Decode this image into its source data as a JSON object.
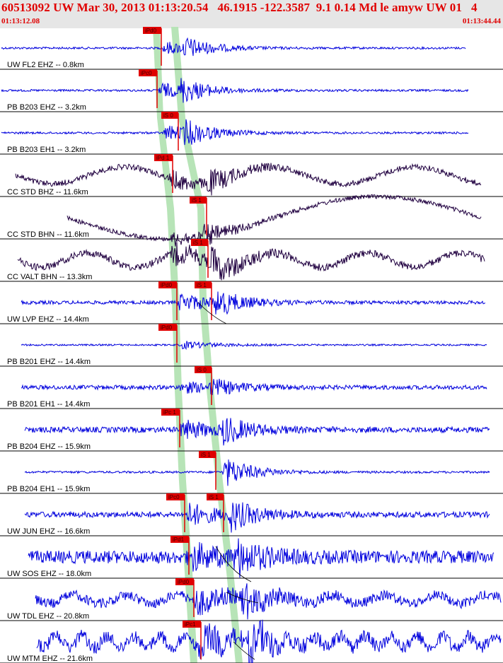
{
  "header": {
    "title": "60513092 UW Mar 30, 2013 01:13:20.54   46.1915 -122.3587  9.1 0.14 Md le amyw UW 01   4",
    "start_time": "01:13:12.08",
    "end_time": "01:13:44.44"
  },
  "colors": {
    "high_gain": "#0000dd",
    "broadband": "#200040",
    "pick": "#e00000",
    "window": "#b7e4b7"
  },
  "traces": [
    {
      "label": "UW FL2 EHZ -- 0.8km",
      "p_pick": "iPd0",
      "s_pick": null,
      "type": "high_gain"
    },
    {
      "label": "PB B203 EHZ -- 3.2km",
      "p_pick": "iPc0",
      "s_pick": null,
      "type": "high_gain"
    },
    {
      "label": "PB B203 EH1 -- 3.2km",
      "p_pick": null,
      "s_pick": "iS 0",
      "type": "high_gain"
    },
    {
      "label": "CC STD BHZ -- 11.6km",
      "p_pick": "iPd 1",
      "s_pick": null,
      "type": "broadband"
    },
    {
      "label": "CC STD BHN -- 11.6km",
      "p_pick": null,
      "s_pick": "iS 1",
      "type": "broadband"
    },
    {
      "label": "CC VALT BHN -- 13.3km",
      "p_pick": null,
      "s_pick": "iS 1",
      "type": "broadband"
    },
    {
      "label": "UW LVP EHZ -- 14.4km",
      "p_pick": "iPd0",
      "s_pick": "iS 1",
      "type": "high_gain"
    },
    {
      "label": "PB B201 EHZ -- 14.4km",
      "p_pick": "iPd0",
      "s_pick": null,
      "type": "high_gain"
    },
    {
      "label": "PB B201 EH1 -- 14.4km",
      "p_pick": null,
      "s_pick": "iS 0",
      "type": "high_gain"
    },
    {
      "label": "PB B204 EHZ -- 15.9km",
      "p_pick": "iPc 1",
      "s_pick": null,
      "type": "high_gain"
    },
    {
      "label": "PB B204 EH1 -- 15.9km",
      "p_pick": null,
      "s_pick": "iS 1",
      "type": "high_gain"
    },
    {
      "label": "UW JUN EHZ -- 16.6km",
      "p_pick": "iPc0",
      "s_pick": "iS 1",
      "type": "high_gain"
    },
    {
      "label": "UW SOS EHZ -- 18.0km",
      "p_pick": "iPd1",
      "s_pick": null,
      "type": "high_gain"
    },
    {
      "label": "UW TDL EHZ -- 20.8km",
      "p_pick": "iPd0",
      "s_pick": null,
      "type": "high_gain"
    },
    {
      "label": "UW MTM EHZ -- 21.6km",
      "p_pick": "iPc1",
      "s_pick": null,
      "type": "high_gain"
    }
  ]
}
